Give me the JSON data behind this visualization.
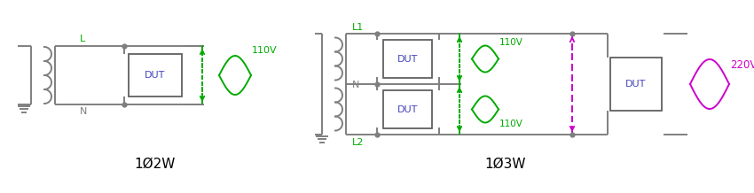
{
  "bg_color": "#ffffff",
  "wire_color": "#7f7f7f",
  "green_color": "#00aa00",
  "purple_color": "#cc00cc",
  "blue_color": "#4444bb",
  "dut_border_color": "#606060",
  "label_L": "L",
  "label_N": "N",
  "label_L1": "L1",
  "label_L2": "L2",
  "label_110V": "110V",
  "label_220V": "220V",
  "label_DUT": "DUT",
  "label_1ph2w": "1Ø2W",
  "label_1ph3w": "1Ø3W",
  "figsize": [
    8.5,
    2.18
  ],
  "dpi": 100
}
